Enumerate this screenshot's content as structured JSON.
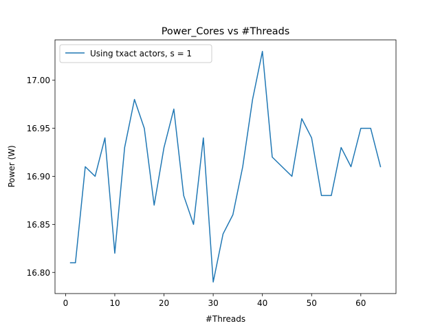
{
  "chart_data": {
    "type": "line",
    "title": "Power_Cores vs #Threads",
    "xlabel": "#Threads",
    "ylabel": "Power (W)",
    "xlim": [
      -2.15,
      67.15
    ],
    "ylim": [
      16.778,
      17.042
    ],
    "x_ticks": [
      0,
      10,
      20,
      30,
      40,
      50,
      60
    ],
    "y_ticks": [
      16.8,
      16.85,
      16.9,
      16.95,
      17.0
    ],
    "x_tick_labels": [
      "0",
      "10",
      "20",
      "30",
      "40",
      "50",
      "60"
    ],
    "y_tick_labels": [
      "16.80",
      "16.85",
      "16.90",
      "16.95",
      "17.00"
    ],
    "grid": false,
    "legend_position": "top-left",
    "series": [
      {
        "name": "Using txact actors, s = 1",
        "color": "#1f77b4",
        "x": [
          1,
          2,
          4,
          6,
          8,
          10,
          12,
          14,
          16,
          18,
          20,
          22,
          24,
          26,
          28,
          30,
          32,
          34,
          36,
          38,
          40,
          42,
          44,
          46,
          48,
          50,
          52,
          54,
          56,
          58,
          60,
          62,
          64
        ],
        "y": [
          16.81,
          16.81,
          16.91,
          16.9,
          16.94,
          16.82,
          16.93,
          16.98,
          16.95,
          16.87,
          16.93,
          16.97,
          16.88,
          16.85,
          16.94,
          16.79,
          16.84,
          16.86,
          16.91,
          16.98,
          17.03,
          16.92,
          16.91,
          16.9,
          16.96,
          16.94,
          16.88,
          16.88,
          16.93,
          16.91,
          16.95,
          16.95,
          16.91
        ]
      }
    ]
  }
}
